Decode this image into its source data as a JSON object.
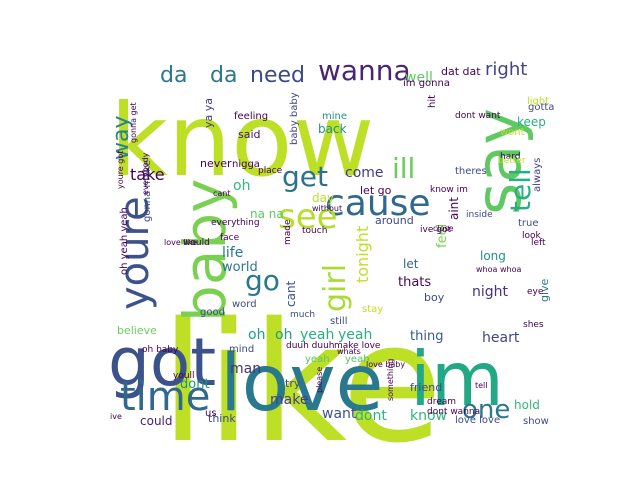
{
  "cloud": {
    "words": [
      {
        "text": "like",
        "color": "#bddf26"
      },
      {
        "text": "know",
        "color": "#bddf26"
      },
      {
        "text": "love",
        "color": "#2a788e"
      },
      {
        "text": "im",
        "color": "#22a884"
      },
      {
        "text": "got",
        "color": "#3b528b"
      },
      {
        "text": "say",
        "color": "#5ec962"
      },
      {
        "text": "baby",
        "color": "#7ad151"
      },
      {
        "text": "youre",
        "color": "#3b528b"
      },
      {
        "text": "time",
        "color": "#31688e"
      },
      {
        "text": "cause",
        "color": "#31688e"
      },
      {
        "text": "see",
        "color": "#b5de2b"
      },
      {
        "text": "get",
        "color": "#2c728e"
      },
      {
        "text": "wanna",
        "color": "#482576"
      },
      {
        "text": "need",
        "color": "#3e4989"
      },
      {
        "text": "da",
        "color": "#2a788e"
      },
      {
        "text": "da",
        "color": "#2a788e"
      },
      {
        "text": "one",
        "color": "#2a788e"
      },
      {
        "text": "tell",
        "color": "#28ae80"
      },
      {
        "text": "ill",
        "color": "#6ccd5a"
      },
      {
        "text": "girl",
        "color": "#a8db34"
      },
      {
        "text": "go",
        "color": "#2a788e"
      },
      {
        "text": "way",
        "color": "#26828e"
      },
      {
        "text": "right",
        "color": "#414487"
      },
      {
        "text": "well",
        "color": "#5ec962"
      },
      {
        "text": "wont",
        "color": "#bddf26"
      },
      {
        "text": "take",
        "color": "#440154"
      },
      {
        "text": "oh",
        "color": "#35b779"
      },
      {
        "text": "oh",
        "color": "#1f9e89"
      },
      {
        "text": "oh",
        "color": "#1f9e89"
      },
      {
        "text": "yeah",
        "color": "#29af7f"
      },
      {
        "text": "yeah",
        "color": "#29af7f"
      },
      {
        "text": "night",
        "color": "#46327e"
      },
      {
        "text": "come",
        "color": "#443983"
      },
      {
        "text": "let",
        "color": "#31688e"
      },
      {
        "text": "thats",
        "color": "#46085c"
      },
      {
        "text": "thing",
        "color": "#365c8d"
      },
      {
        "text": "heart",
        "color": "#414487"
      },
      {
        "text": "life",
        "color": "#2a788e"
      },
      {
        "text": "world",
        "color": "#2a788e"
      },
      {
        "text": "man",
        "color": "#46327e"
      },
      {
        "text": "dont",
        "color": "#21918c"
      },
      {
        "text": "make",
        "color": "#433e85"
      },
      {
        "text": "want",
        "color": "#3b528b"
      },
      {
        "text": "dont",
        "color": "#2fb47c"
      },
      {
        "text": "know",
        "color": "#2fb47c"
      },
      {
        "text": "could",
        "color": "#481f70"
      },
      {
        "text": "think",
        "color": "#3e4989"
      },
      {
        "text": "tonight",
        "color": "#bddf26"
      },
      {
        "text": "keep",
        "color": "#29af7f"
      },
      {
        "text": "always",
        "color": "#433e85"
      },
      {
        "text": "aint",
        "color": "#46085c"
      },
      {
        "text": "feel",
        "color": "#7ad151"
      },
      {
        "text": "long",
        "color": "#21918c"
      },
      {
        "text": "give",
        "color": "#2a788e"
      },
      {
        "text": "believe",
        "color": "#6ccd5a"
      },
      {
        "text": "na na",
        "color": "#5ec962"
      },
      {
        "text": "yeah",
        "color": "#52c569"
      },
      {
        "text": "yeah",
        "color": "#52c569"
      },
      {
        "text": "said",
        "color": "#471063"
      },
      {
        "text": "back",
        "color": "#21918c"
      },
      {
        "text": "mine",
        "color": "#21918c"
      },
      {
        "text": "baby baby",
        "color": "#404688"
      },
      {
        "text": "never",
        "color": "#440154"
      },
      {
        "text": "cant",
        "color": "#3b528b"
      },
      {
        "text": "day",
        "color": "#bddf26"
      },
      {
        "text": "ya ya",
        "color": "#453781"
      },
      {
        "text": "around",
        "color": "#3e4989"
      },
      {
        "text": "theres",
        "color": "#3e4989"
      },
      {
        "text": "inside",
        "color": "#3e4989"
      },
      {
        "text": "true",
        "color": "#3e4989"
      },
      {
        "text": "boy",
        "color": "#3e4989"
      },
      {
        "text": "gotta",
        "color": "#3e4989"
      },
      {
        "text": "light",
        "color": "#bddf26"
      },
      {
        "text": "hold",
        "color": "#35b779"
      },
      {
        "text": "show",
        "color": "#3e4989"
      },
      {
        "text": "love love",
        "color": "#3e4989"
      },
      {
        "text": "friend",
        "color": "#3e4989"
      },
      {
        "text": "try",
        "color": "#3e4989"
      },
      {
        "text": "good",
        "color": "#3e4989"
      },
      {
        "text": "word",
        "color": "#3e4989"
      },
      {
        "text": "still",
        "color": "#3e4989"
      },
      {
        "text": "much",
        "color": "#3e4989"
      },
      {
        "text": "stay",
        "color": "#bddf26"
      },
      {
        "text": "mind",
        "color": "#3e4989"
      },
      {
        "text": "dat dat",
        "color": "#440154"
      },
      {
        "text": "feeling",
        "color": "#440154"
      },
      {
        "text": "nigga",
        "color": "#440154"
      },
      {
        "text": "gonna make",
        "color": "#3e4989"
      },
      {
        "text": "let go",
        "color": "#440154"
      },
      {
        "text": "face",
        "color": "#440154"
      },
      {
        "text": "hit",
        "color": "#440154"
      },
      {
        "text": "dont want",
        "color": "#440154"
      },
      {
        "text": "know im",
        "color": "#440154"
      },
      {
        "text": "oh yeah yeah",
        "color": "#440154"
      },
      {
        "text": "everything",
        "color": "#440154"
      },
      {
        "text": "place",
        "color": "#440154"
      },
      {
        "text": "look",
        "color": "#440154"
      },
      {
        "text": "hard",
        "color": "#440154"
      },
      {
        "text": "oh baby",
        "color": "#440154"
      },
      {
        "text": "youll",
        "color": "#440154"
      },
      {
        "text": "better",
        "color": "#bddf26"
      },
      {
        "text": "im gonna",
        "color": "#440154"
      },
      {
        "text": "ive got",
        "color": "#440154"
      },
      {
        "text": "dont wanna",
        "color": "#440154"
      },
      {
        "text": "left",
        "color": "#440154"
      },
      {
        "text": "whoa whoa",
        "color": "#440154"
      },
      {
        "text": "us",
        "color": "#440154"
      },
      {
        "text": "would",
        "color": "#440154"
      },
      {
        "text": "made",
        "color": "#440154"
      },
      {
        "text": "touch",
        "color": "#440154"
      },
      {
        "text": "close",
        "color": "#440154"
      },
      {
        "text": "eye",
        "color": "#440154"
      },
      {
        "text": "dream",
        "color": "#440154"
      },
      {
        "text": "shes",
        "color": "#440154"
      },
      {
        "text": "whats",
        "color": "#440154"
      },
      {
        "text": "please",
        "color": "#440154"
      },
      {
        "text": "something",
        "color": "#440154"
      },
      {
        "text": "everybody",
        "color": "#440154"
      },
      {
        "text": "youre got",
        "color": "#440154"
      },
      {
        "text": "duuh duuh",
        "color": "#440154"
      },
      {
        "text": "make love",
        "color": "#440154"
      },
      {
        "text": "love baby",
        "color": "#440154"
      },
      {
        "text": "love like",
        "color": "#440154"
      },
      {
        "text": "gonna get",
        "color": "#440154"
      },
      {
        "text": "without",
        "color": "#440154"
      },
      {
        "text": "tell",
        "color": "#440154"
      },
      {
        "text": "ive",
        "color": "#440154"
      },
      {
        "text": "cant",
        "color": "#440154"
      }
    ]
  }
}
